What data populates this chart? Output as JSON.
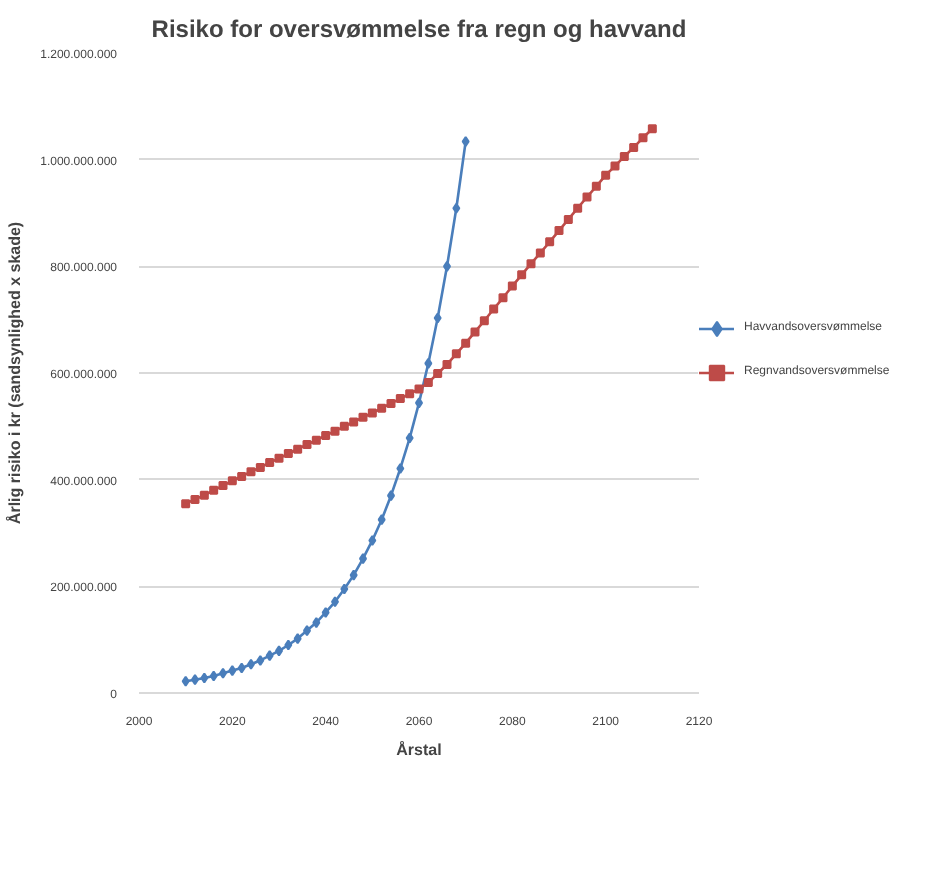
{
  "chart_data": {
    "type": "line",
    "title": "Risiko for oversvømmelse fra regn og havvand",
    "xlabel": "Årstal",
    "ylabel": "Årlig risiko i kr (sandsynlighed x skade)",
    "xlim": [
      2000,
      2120
    ],
    "xticks": [
      2000,
      2020,
      2040,
      2060,
      2080,
      2100,
      2120
    ],
    "ylim": [
      0,
      1200000000
    ],
    "yticks": [
      {
        "value": 0,
        "label": "0"
      },
      {
        "value": 200000000,
        "label": "200.000.000"
      },
      {
        "value": 400000000,
        "label": "400.000.000"
      },
      {
        "value": 600000000,
        "label": "600.000.000"
      },
      {
        "value": 800000000,
        "label": "800.000.000"
      },
      {
        "value": 1000000000,
        "label": "1.000.000.000"
      },
      {
        "value": 1200000000,
        "label": "1.200.000.000"
      }
    ],
    "grid": "y",
    "legend": "right",
    "series": [
      {
        "name": "Havvandsoversvømmelse",
        "color": "#4a7ebb",
        "marker": "diamond",
        "x": [
          2010,
          2012,
          2014,
          2016,
          2018,
          2020,
          2022,
          2024,
          2026,
          2028,
          2030,
          2032,
          2034,
          2036,
          2038,
          2040,
          2042,
          2044,
          2046,
          2048,
          2050,
          2052,
          2054,
          2056,
          2058,
          2060,
          2062,
          2064,
          2066,
          2068,
          2070
        ],
        "values": [
          22000000,
          25000000,
          28000000,
          32000000,
          37000000,
          42000000,
          47000000,
          54000000,
          61000000,
          70000000,
          79000000,
          90000000,
          102000000,
          117000000,
          132000000,
          151000000,
          171000000,
          195000000,
          221000000,
          252000000,
          286000000,
          325000000,
          370000000,
          421000000,
          478000000,
          544000000,
          618000000,
          703000000,
          800000000,
          909000000,
          1034000000
        ]
      },
      {
        "name": "Regnvandsoversvømmelse",
        "color": "#be4b48",
        "marker": "square",
        "x": [
          2010,
          2012,
          2014,
          2016,
          2018,
          2020,
          2022,
          2024,
          2026,
          2028,
          2030,
          2032,
          2034,
          2036,
          2038,
          2040,
          2042,
          2044,
          2046,
          2048,
          2050,
          2052,
          2054,
          2056,
          2058,
          2060,
          2062,
          2064,
          2066,
          2068,
          2070,
          2072,
          2074,
          2076,
          2078,
          2080,
          2082,
          2084,
          2086,
          2088,
          2090,
          2092,
          2094,
          2096,
          2098,
          2100,
          2102,
          2104,
          2106,
          2108,
          2110
        ],
        "values": [
          355000000,
          363000000,
          371000000,
          380000000,
          389000000,
          398000000,
          406000000,
          415000000,
          423000000,
          432000000,
          440000000,
          449000000,
          457000000,
          466000000,
          474000000,
          483000000,
          491000000,
          500000000,
          508000000,
          517000000,
          525000000,
          534000000,
          543000000,
          552000000,
          561000000,
          570000000,
          582000000,
          599000000,
          616000000,
          636000000,
          656000000,
          677000000,
          698000000,
          720000000,
          741000000,
          763000000,
          784000000,
          805000000,
          825000000,
          846000000,
          867000000,
          888000000,
          909000000,
          930000000,
          950000000,
          971000000,
          988000000,
          1006000000,
          1023000000,
          1041000000,
          1058000000
        ]
      }
    ]
  }
}
